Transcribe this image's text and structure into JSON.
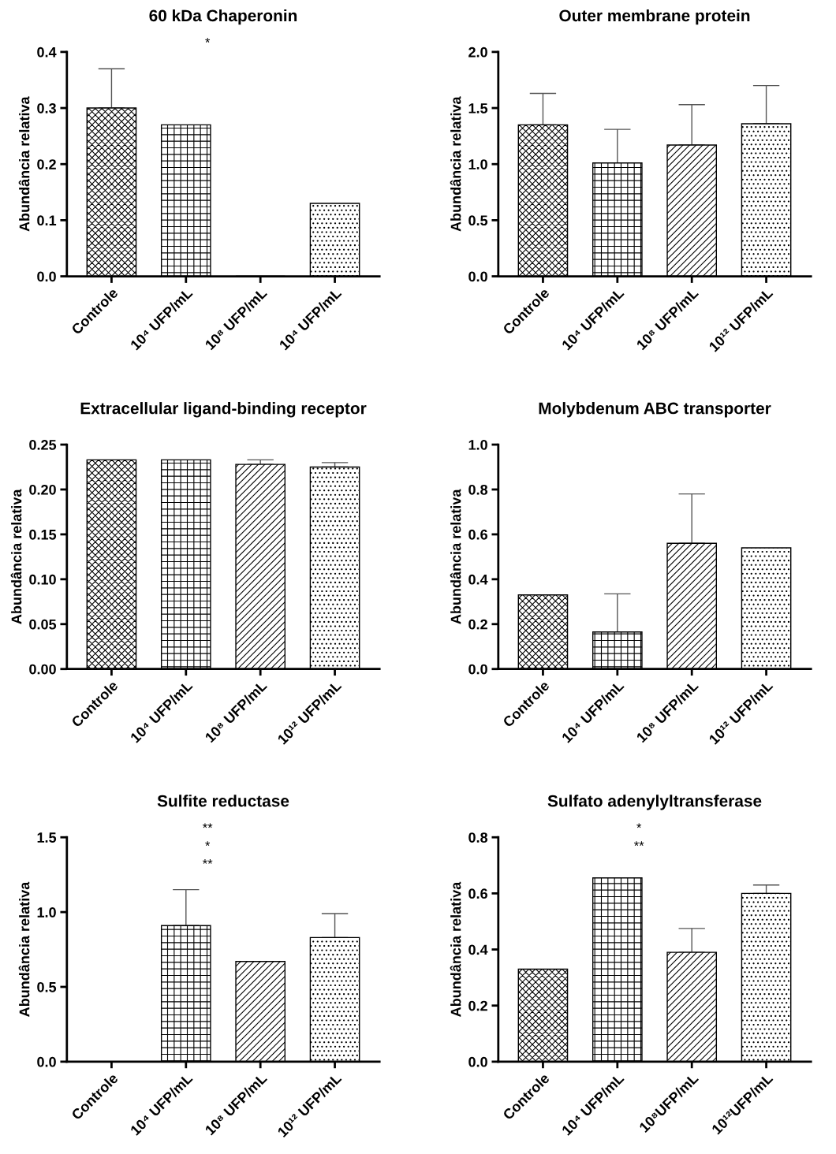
{
  "chart_data": [
    {
      "type": "bar",
      "title": "60 kDa Chaperonin",
      "ylabel": "Abundância relativa",
      "categories": [
        "Controle",
        "10⁴ UFP/mL",
        "10⁸ UFP/mL",
        "10⁴ UFP/mL"
      ],
      "values": [
        0.3,
        0.27,
        0,
        0.13
      ],
      "errors": [
        [
          0.3,
          0.37
        ],
        null,
        null,
        null
      ],
      "color": "#000000",
      "ylim": [
        0,
        0.4
      ],
      "yticks": [
        {
          "value": 0,
          "label": "0.0"
        },
        0.1,
        0.2,
        0.3,
        0.4
      ],
      "annotations": [
        "*"
      ],
      "grid": false,
      "legend": false
    },
    {
      "type": "bar",
      "title": "Outer membrane protein",
      "ylabel": "Abundância relativa",
      "categories": [
        "Controle",
        "10⁴ UFP/mL",
        "10⁸ UFP/mL",
        "10¹² UFP/mL"
      ],
      "values": [
        1.35,
        1.01,
        1.17,
        1.36
      ],
      "errors": [
        [
          1.35,
          1.63
        ],
        [
          1.01,
          1.31
        ],
        [
          1.17,
          1.53
        ],
        [
          1.36,
          1.7
        ]
      ],
      "color": "#000000",
      "ylim": [
        0,
        2
      ],
      "yticks": [
        {
          "value": 0,
          "label": "0.0"
        },
        0.5,
        {
          "value": 1,
          "label": "1.0"
        },
        1.5,
        {
          "value": 2,
          "label": "2.0"
        }
      ],
      "grid": false,
      "legend": false
    },
    {
      "type": "bar",
      "title": "Extracellular ligand-binding receptor",
      "ylabel": "Abundância relativa",
      "categories": [
        "Controle",
        "10⁴ UFP/mL",
        "10⁸ UFP/mL",
        "10¹² UFP/mL"
      ],
      "values": [
        0.233,
        0.233,
        0.228,
        0.225
      ],
      "errors": [
        null,
        null,
        [
          0.228,
          0.233
        ],
        [
          0.225,
          0.23
        ]
      ],
      "color": "#000000",
      "ylim": [
        0,
        0.25
      ],
      "yticks": [
        {
          "value": 0,
          "label": "0.00"
        },
        0.05,
        {
          "value": 0.1,
          "label": "0.10"
        },
        0.15,
        {
          "value": 0.2,
          "label": "0.20"
        },
        0.25
      ],
      "grid": false,
      "legend": false
    },
    {
      "type": "bar",
      "title": "Molybdenum ABC transporter",
      "ylabel": "Abundância relativa",
      "categories": [
        "Controle",
        "10⁴ UFP/mL",
        "10⁸ UFP/mL",
        "10¹² UFP/mL"
      ],
      "values": [
        0.33,
        0.165,
        0.56,
        0.54
      ],
      "errors": [
        null,
        [
          0.165,
          0.335
        ],
        [
          0.56,
          0.78
        ],
        null
      ],
      "color": "#000000",
      "ylim": [
        0,
        1
      ],
      "yticks": [
        {
          "value": 0,
          "label": "0.0"
        },
        0.2,
        0.4,
        0.6,
        0.8,
        {
          "value": 1,
          "label": "1.0"
        }
      ],
      "grid": false,
      "legend": false
    },
    {
      "type": "bar",
      "title": "Sulfite reductase",
      "ylabel": "Abundância relativa",
      "categories": [
        "Controle",
        "10⁴ UFP/mL",
        "10⁸ UFP/mL",
        "10¹² UFP/mL"
      ],
      "values": [
        0,
        0.91,
        0.67,
        0.83
      ],
      "errors": [
        null,
        [
          0.91,
          1.15
        ],
        null,
        [
          0.83,
          0.99
        ]
      ],
      "color": "#000000",
      "ylim": [
        0,
        1.5
      ],
      "yticks": [
        {
          "value": 0,
          "label": "0.0"
        },
        0.5,
        {
          "value": 1,
          "label": "1.0"
        },
        1.5
      ],
      "annotations": [
        "**",
        "*",
        "**"
      ],
      "grid": false,
      "legend": false
    },
    {
      "type": "bar",
      "title": "Sulfato adenylyltransferase",
      "ylabel": "Abundância relativa",
      "categories": [
        "Controle",
        "10⁴ UFP/mL",
        "10⁸UFP/mL",
        "10¹²UFP/mL"
      ],
      "values": [
        0.33,
        0.655,
        0.39,
        0.6
      ],
      "errors": [
        null,
        null,
        [
          0.39,
          0.475
        ],
        [
          0.6,
          0.63
        ]
      ],
      "color": "#000000",
      "ylim": [
        0,
        0.8
      ],
      "yticks": [
        {
          "value": 0,
          "label": "0.0"
        },
        0.2,
        0.4,
        0.6,
        0.8
      ],
      "annotations": [
        "*",
        "**"
      ],
      "grid": false,
      "legend": false
    }
  ]
}
